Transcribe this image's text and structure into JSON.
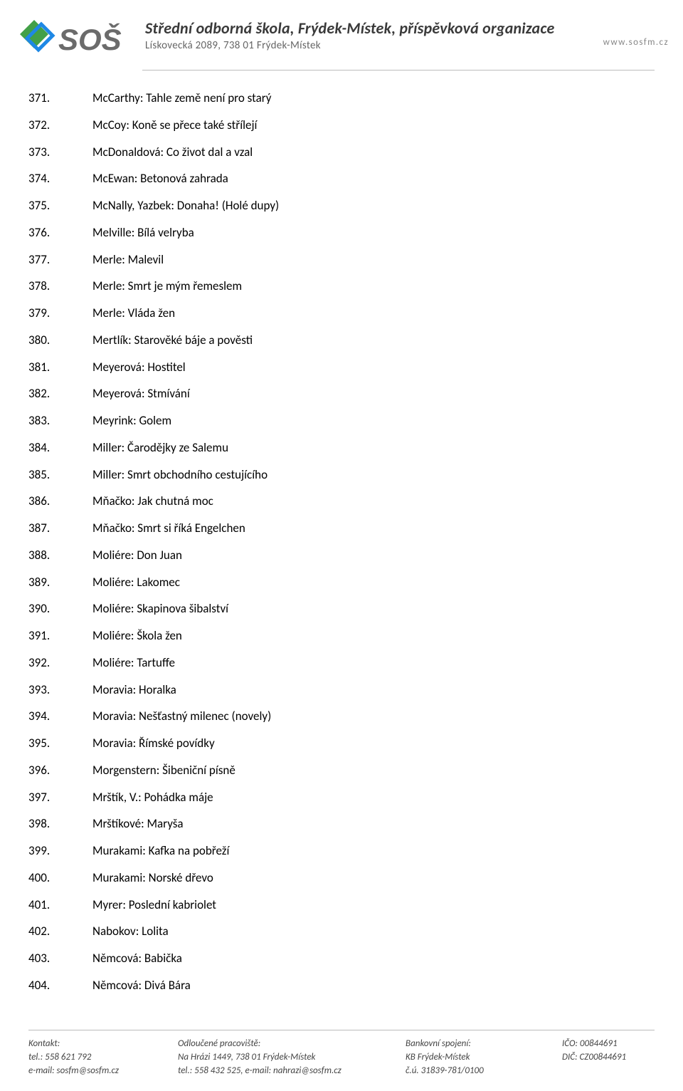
{
  "header": {
    "title": "Střední odborná škola, Frýdek-Místek, příspěvková organizace",
    "address": "Lískovecká 2089, 738 01 Frýdek-Místek",
    "website": "www.sosfm.cz",
    "logo_text_main": "SOŠ",
    "logo_accent_color": "#43a047",
    "logo_accent_color2": "#1e88e5",
    "logo_text_color": "#6b6b6b"
  },
  "items": [
    {
      "n": "371.",
      "t": "McCarthy: Tahle země není pro starý"
    },
    {
      "n": "372.",
      "t": "McCoy: Koně se přece také střílejí"
    },
    {
      "n": "373.",
      "t": "McDonaldová: Co život dal a vzal"
    },
    {
      "n": "374.",
      "t": "McEwan: Betonová zahrada"
    },
    {
      "n": "375.",
      "t": "McNally, Yazbek: Donaha! (Holé dupy)"
    },
    {
      "n": "376.",
      "t": "Melville: Bílá velryba"
    },
    {
      "n": "377.",
      "t": "Merle: Malevil"
    },
    {
      "n": "378.",
      "t": "Merle: Smrt je mým řemeslem"
    },
    {
      "n": "379.",
      "t": "Merle: Vláda žen"
    },
    {
      "n": "380.",
      "t": "Mertlík: Starověké báje a pověsti"
    },
    {
      "n": "381.",
      "t": "Meyerová: Hostitel"
    },
    {
      "n": "382.",
      "t": "Meyerová: Stmívání"
    },
    {
      "n": "383.",
      "t": "Meyrink: Golem"
    },
    {
      "n": "384.",
      "t": "Miller: Čarodějky ze Salemu"
    },
    {
      "n": "385.",
      "t": "Miller: Smrt obchodního cestujícího"
    },
    {
      "n": "386.",
      "t": "Mňačko: Jak chutná moc"
    },
    {
      "n": "387.",
      "t": "Mňačko: Smrt si říká Engelchen"
    },
    {
      "n": "388.",
      "t": "Moliére: Don Juan"
    },
    {
      "n": "389.",
      "t": "Moliére: Lakomec"
    },
    {
      "n": "390.",
      "t": "Moliére: Skapinova šibalství"
    },
    {
      "n": "391.",
      "t": "Moliére: Škola žen"
    },
    {
      "n": "392.",
      "t": "Moliére: Tartuffe"
    },
    {
      "n": "393.",
      "t": "Moravia: Horalka"
    },
    {
      "n": "394.",
      "t": "Moravia: Nešťastný milenec (novely)"
    },
    {
      "n": "395.",
      "t": "Moravia: Římské povídky"
    },
    {
      "n": "396.",
      "t": "Morgenstern: Šibeniční písně"
    },
    {
      "n": "397.",
      "t": "Mrštík, V.: Pohádka máje"
    },
    {
      "n": "398.",
      "t": "Mrštíkové: Maryša"
    },
    {
      "n": "399.",
      "t": "Murakami: Kafka na pobřeží"
    },
    {
      "n": "400.",
      "t": "Murakami: Norské dřevo"
    },
    {
      "n": "401.",
      "t": "Myrer: Poslední kabriolet"
    },
    {
      "n": "402.",
      "t": "Nabokov: Lolita"
    },
    {
      "n": "403.",
      "t": "Němcová: Babička"
    },
    {
      "n": "404.",
      "t": "Němcová: Divá Bára"
    }
  ],
  "footer": {
    "col1": {
      "l1": "Kontakt:",
      "l2": "tel.: 558 621 792",
      "l3": "e-mail: sosfm@sosfm.cz"
    },
    "col2": {
      "l1": "Odloučené pracoviště:",
      "l2": "Na Hrázi 1449, 738 01  Frýdek-Místek",
      "l3": "tel.: 558 432 525, e-mail: nahrazi@sosfm.cz"
    },
    "col3": {
      "l1": "Bankovní spojení:",
      "l2": "KB Frýdek-Místek",
      "l3": "č.ú. 31839-781/0100"
    },
    "col4": {
      "l1": "IČO: 00844691",
      "l2": "",
      "l3": "DIČ: CZ00844691"
    }
  }
}
